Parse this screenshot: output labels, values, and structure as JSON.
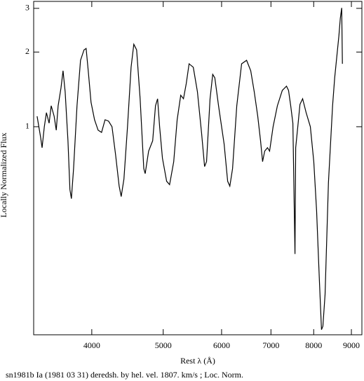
{
  "chart_data": {
    "type": "line",
    "x_label": "Rest λ (Å)",
    "y_label": "Locally Normalized Flux",
    "caption": "sn1981b Ia (1981 03 31) deredsh. by hel. vel.  1807. km/s ;  Loc. Norm.",
    "x_log": true,
    "y_log": true,
    "xlim": [
      3336,
      9300
    ],
    "ylim": [
      0.145,
      3.2
    ],
    "xticks": [
      4000,
      5000,
      6000,
      7000,
      8000,
      9000
    ],
    "yticks": [
      1,
      2,
      3
    ],
    "series": [
      {
        "color": "#000000",
        "x": [
          3372,
          3409,
          3425,
          3449,
          3472,
          3501,
          3524,
          3556,
          3580,
          3601,
          3633,
          3657,
          3681,
          3713,
          3736,
          3753,
          3779,
          3820,
          3862,
          3904,
          3930,
          3956,
          3991,
          4035,
          4080,
          4124,
          4169,
          4215,
          4261,
          4309,
          4357,
          4385,
          4423,
          4472,
          4522,
          4561,
          4601,
          4652,
          4705,
          4726,
          4777,
          4838,
          4881,
          4913,
          4944,
          4988,
          5054,
          5100,
          5167,
          5223,
          5281,
          5327,
          5374,
          5421,
          5492,
          5564,
          5638,
          5689,
          5725,
          5788,
          5836,
          5874,
          5943,
          6048,
          6115,
          6157,
          6210,
          6292,
          6387,
          6487,
          6572,
          6644,
          6717,
          6776,
          6819,
          6865,
          6925,
          6971,
          7048,
          7143,
          7253,
          7348,
          7396,
          7446,
          7496,
          7546,
          7563,
          7613,
          7664,
          7729,
          7814,
          7917,
          8002,
          8073,
          8144,
          8198,
          8234,
          8289,
          8378,
          8487,
          8543,
          8599,
          8656,
          8694,
          8732,
          8751
        ],
        "values": [
          1.102,
          0.907,
          0.823,
          1.0,
          1.139,
          1.033,
          1.215,
          1.102,
          0.968,
          1.215,
          1.429,
          1.681,
          1.383,
          0.878,
          0.558,
          0.513,
          0.678,
          1.215,
          1.852,
          2.041,
          2.068,
          1.681,
          1.255,
          1.067,
          0.968,
          0.949,
          1.067,
          1.053,
          1.0,
          0.771,
          0.576,
          0.523,
          0.615,
          1.0,
          1.736,
          2.15,
          2.041,
          1.296,
          0.678,
          0.647,
          0.797,
          0.878,
          1.215,
          1.296,
          1.0,
          0.747,
          0.603,
          0.584,
          0.723,
          1.067,
          1.339,
          1.296,
          1.495,
          1.793,
          1.736,
          1.383,
          0.937,
          0.691,
          0.723,
          1.296,
          1.626,
          1.575,
          1.215,
          0.85,
          0.603,
          0.576,
          0.678,
          1.215,
          1.793,
          1.852,
          1.681,
          1.383,
          1.102,
          0.878,
          0.723,
          0.797,
          0.823,
          0.797,
          1.0,
          1.215,
          1.401,
          1.457,
          1.401,
          1.215,
          1.033,
          0.307,
          0.823,
          1.0,
          1.231,
          1.296,
          1.139,
          1.0,
          0.723,
          0.459,
          0.24,
          0.152,
          0.157,
          0.211,
          0.595,
          1.215,
          1.575,
          1.913,
          2.324,
          2.733,
          3.012,
          1.793
        ]
      }
    ]
  }
}
